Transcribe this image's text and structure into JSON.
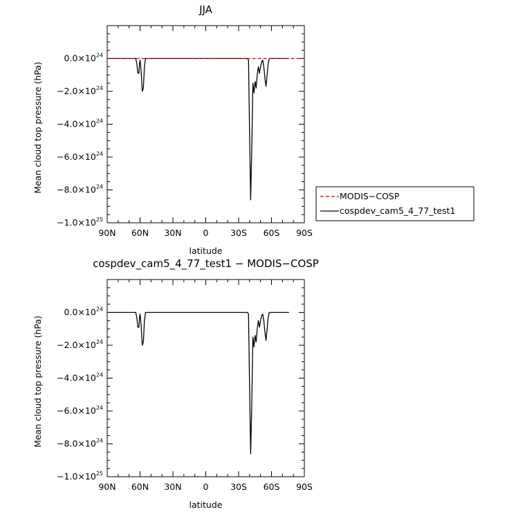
{
  "chart_data": [
    {
      "type": "line",
      "title": "JJA",
      "xlabel": "latitude",
      "ylabel": "Mean cloud top pressure (hPa)",
      "x_ticks": [
        "90N",
        "60N",
        "30N",
        "0",
        "30S",
        "60S",
        "90S"
      ],
      "y_ticks": [
        {
          "mant": "0.0",
          "exp": "24"
        },
        {
          "mant": "−2.0",
          "exp": "24"
        },
        {
          "mant": "−4.0",
          "exp": "24"
        },
        {
          "mant": "−6.0",
          "exp": "24"
        },
        {
          "mant": "−8.0",
          "exp": "24"
        },
        {
          "mant": "−1.0",
          "exp": "25"
        }
      ],
      "xlim": [
        90,
        -90
      ],
      "ylim": [
        -1e+25,
        2e+24
      ],
      "grid": false,
      "legend": {
        "position": "right",
        "entries": [
          {
            "label": "MODIS−COSP",
            "color": "#cc0000",
            "dashed": true
          },
          {
            "label": "cospdev_cam5_4_77_test1",
            "color": "#000000",
            "dashed": false
          }
        ]
      },
      "series": [
        {
          "name": "MODIS−COSP",
          "color": "#cc0000",
          "dashed": true,
          "x": [
            89,
            -89
          ],
          "y": [
            0,
            0
          ]
        },
        {
          "name": "cospdev_cam5_4_77_test1",
          "color": "#000000",
          "dashed": false,
          "x": [
            89,
            64,
            63,
            62,
            61,
            60.5,
            60,
            59,
            58,
            57,
            56,
            55,
            54,
            53,
            -38,
            -39,
            -40,
            -41,
            -42,
            -43,
            -44,
            -45,
            -46,
            -47,
            -48,
            -49,
            -50,
            -51,
            -52,
            -53,
            -54,
            -55,
            -56,
            -57,
            -58,
            -59,
            -60,
            -61,
            -62,
            -76
          ],
          "y": [
            0,
            0,
            -3e+23,
            -9e+23,
            -9e+23,
            -3e+23,
            -1e+23,
            -8e+23,
            -2e+24,
            -1.8e+24,
            -5e+23,
            0,
            0,
            0,
            0,
            -1e+23,
            -4.5e+24,
            -8.6e+24,
            -5.5e+24,
            -1.5e+24,
            -2.1e+24,
            -1.4e+24,
            -1.8e+24,
            -1e+24,
            -5e+23,
            -9e+23,
            -5e+23,
            -2e+23,
            -1e+23,
            -5e+23,
            -1.2e+24,
            -1.7e+24,
            -1e+24,
            -3e+23,
            0,
            0,
            0,
            0,
            0,
            0
          ]
        }
      ]
    },
    {
      "type": "line",
      "title": "cospdev_cam5_4_77_test1 − MODIS−COSP",
      "xlabel": "latitude",
      "ylabel": "Mean cloud top pressure (hPa)",
      "x_ticks": [
        "90N",
        "60N",
        "30N",
        "0",
        "30S",
        "60S",
        "90S"
      ],
      "y_ticks": [
        {
          "mant": "0.0",
          "exp": "24"
        },
        {
          "mant": "−2.0",
          "exp": "24"
        },
        {
          "mant": "−4.0",
          "exp": "24"
        },
        {
          "mant": "−6.0",
          "exp": "24"
        },
        {
          "mant": "−8.0",
          "exp": "24"
        },
        {
          "mant": "−1.0",
          "exp": "25"
        }
      ],
      "xlim": [
        90,
        -90
      ],
      "ylim": [
        -1e+25,
        2e+24
      ],
      "grid": false,
      "series": [
        {
          "color": "#000000",
          "dashed": false,
          "x": [
            89,
            64,
            63,
            62,
            61,
            60.5,
            60,
            59,
            58,
            57,
            56,
            55,
            54,
            53,
            -38,
            -39,
            -40,
            -41,
            -42,
            -43,
            -44,
            -45,
            -46,
            -47,
            -48,
            -49,
            -50,
            -51,
            -52,
            -53,
            -54,
            -55,
            -56,
            -57,
            -58,
            -59,
            -60,
            -61,
            -62,
            -76
          ],
          "y": [
            0,
            0,
            -3e+23,
            -9e+23,
            -9e+23,
            -3e+23,
            -1e+23,
            -8e+23,
            -2e+24,
            -1.8e+24,
            -5e+23,
            0,
            0,
            0,
            0,
            -1e+23,
            -4.5e+24,
            -8.6e+24,
            -5.5e+24,
            -1.5e+24,
            -2.1e+24,
            -1.4e+24,
            -1.8e+24,
            -1e+24,
            -5e+23,
            -9e+23,
            -5e+23,
            -2e+23,
            -1e+23,
            -5e+23,
            -1.2e+24,
            -1.7e+24,
            -1e+24,
            -3e+23,
            0,
            0,
            0,
            0,
            0,
            0
          ]
        }
      ]
    }
  ]
}
